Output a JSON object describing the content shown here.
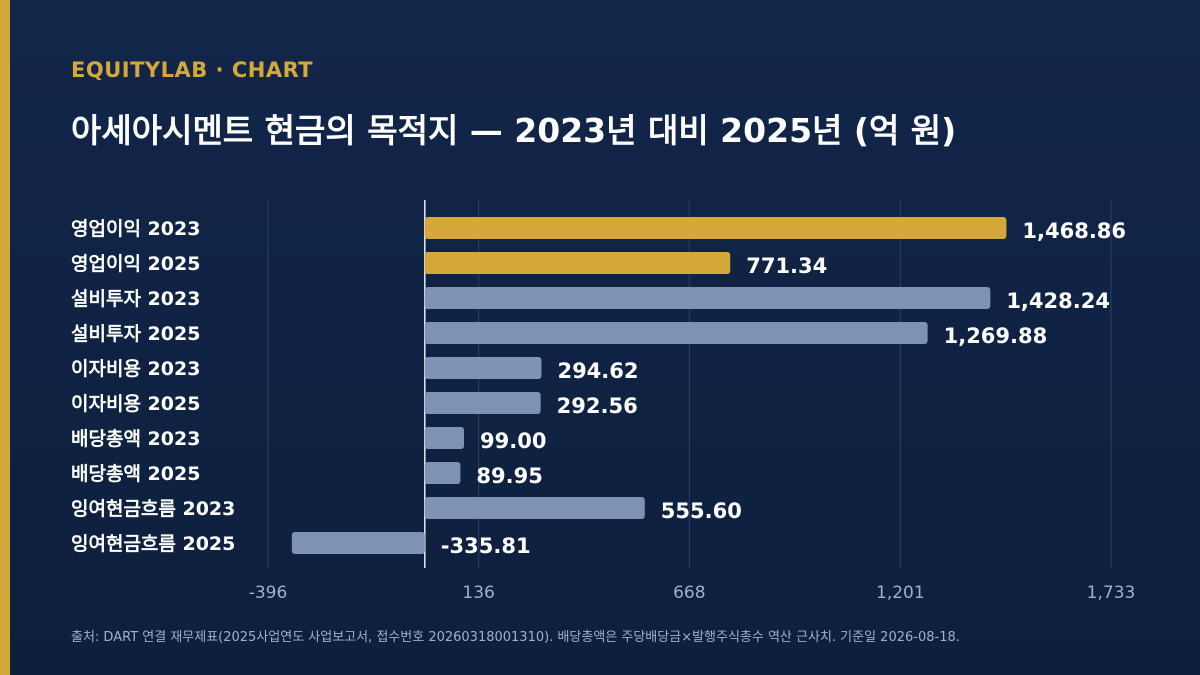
{
  "header": {
    "brand": "EQUITYLAB · CHART",
    "title": "아세아시멘트 현금의 목적지 — 2023년 대비 2025년 (억 원)"
  },
  "footer": {
    "source": "출처: DART 연결 재무제표(2025사업연도 사업보고서, 접수번호 20260318001310). 배당총액은 주당배당금×발행주식총수 역산 근사치. 기준일 2026-08-18."
  },
  "colors": {
    "highlight": "#d4a93a",
    "bar": "#7d92b4",
    "grid": "#2b4066",
    "zero_line": "#e6ebf3"
  },
  "chart_data": {
    "type": "bar",
    "orientation": "horizontal",
    "title": "아세아시멘트 현금의 목적지 — 2023년 대비 2025년 (억 원)",
    "categories": [
      "영업이익 2023",
      "영업이익 2025",
      "설비투자 2023",
      "설비투자 2025",
      "이자비용 2023",
      "이자비용 2025",
      "배당총액 2023",
      "배당총액 2025",
      "잉여현금흐름 2023",
      "잉여현금흐름 2025"
    ],
    "values": [
      1468.86,
      771.34,
      1428.24,
      1269.88,
      294.62,
      292.56,
      99.0,
      89.95,
      555.6,
      -335.81
    ],
    "value_labels": [
      "1,468.86",
      "771.34",
      "1,428.24",
      "1,269.88",
      "294.62",
      "292.56",
      "99.00",
      "89.95",
      "555.60",
      "-335.81"
    ],
    "highlighted": [
      true,
      true,
      false,
      false,
      false,
      false,
      false,
      false,
      false,
      false
    ],
    "x_ticks": [
      -396,
      136,
      668,
      1201,
      1733
    ],
    "x_tick_labels": [
      "-396",
      "136",
      "668",
      "1,201",
      "1,733"
    ],
    "xlim": [
      -396,
      1733
    ],
    "grid": true,
    "xlabel": "",
    "ylabel": ""
  }
}
